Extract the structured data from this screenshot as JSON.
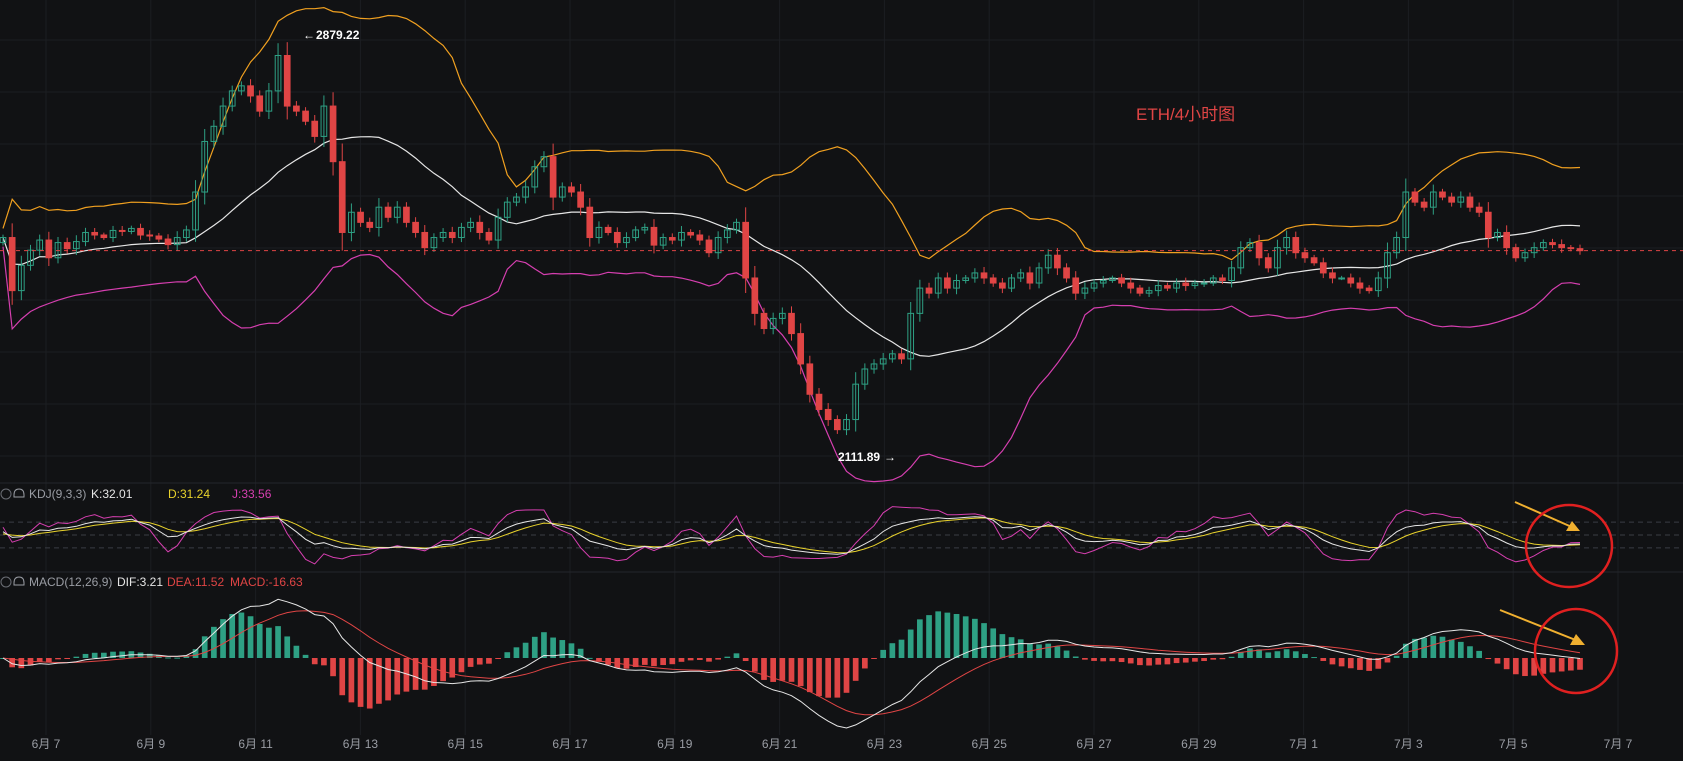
{
  "title": "ETH/4小时图",
  "colors": {
    "background": "#111214",
    "grid": "#1c1e22",
    "up": "#2ea084",
    "down": "#e04545",
    "bb_upper": "#f0a020",
    "bb_mid": "#e6e6e6",
    "bb_lower": "#d63fb0",
    "kdj_k": "#e6e6e6",
    "kdj_d": "#e8d22c",
    "kdj_j": "#d63fb0",
    "dif": "#e6e6e6",
    "dea": "#e04545",
    "annotation": "#f0b030",
    "circle": "#e02020",
    "price_line": "#e04545"
  },
  "price_high_label": "2879.22",
  "price_low_label": "2111.89",
  "kdj": {
    "name": "KDJ(9,3,3)",
    "k_label": "K:32.01",
    "d_label": "D:31.24",
    "j_label": "J:33.56"
  },
  "macd": {
    "name": "MACD(12,26,9)",
    "dif_label": "DIF:3.21",
    "dea_label": "DEA:11.52",
    "macd_label": "MACD:-16.63"
  },
  "chart_data": {
    "type": "candlestick",
    "x_ticks": [
      "6月 7",
      "6月 9",
      "6月 11",
      "6月 13",
      "6月 15",
      "6月 17",
      "6月 19",
      "6月 21",
      "6月 23",
      "6月 25",
      "6月 27",
      "6月 29",
      "7月 1",
      "7月 3",
      "7月 5",
      "7月 7"
    ],
    "ylim": [
      2060,
      2950
    ],
    "current_price": 2474,
    "closes": [
      2500,
      2395,
      2445,
      2475,
      2495,
      2460,
      2490,
      2478,
      2492,
      2510,
      2505,
      2500,
      2514,
      2512,
      2518,
      2505,
      2503,
      2497,
      2486,
      2500,
      2515,
      2590,
      2690,
      2720,
      2760,
      2790,
      2800,
      2780,
      2750,
      2790,
      2860,
      2760,
      2750,
      2730,
      2700,
      2760,
      2650,
      2510,
      2550,
      2530,
      2520,
      2560,
      2540,
      2560,
      2530,
      2510,
      2480,
      2500,
      2510,
      2500,
      2520,
      2530,
      2510,
      2495,
      2540,
      2570,
      2580,
      2600,
      2640,
      2660,
      2580,
      2600,
      2590,
      2560,
      2500,
      2520,
      2510,
      2490,
      2500,
      2515,
      2520,
      2485,
      2500,
      2495,
      2510,
      2505,
      2495,
      2470,
      2500,
      2515,
      2530,
      2420,
      2350,
      2320,
      2340,
      2350,
      2310,
      2250,
      2190,
      2160,
      2140,
      2120,
      2140,
      2210,
      2240,
      2250,
      2260,
      2270,
      2260,
      2350,
      2400,
      2390,
      2420,
      2400,
      2415,
      2420,
      2430,
      2420,
      2410,
      2400,
      2420,
      2430,
      2410,
      2440,
      2465,
      2440,
      2420,
      2390,
      2400,
      2410,
      2415,
      2420,
      2410,
      2400,
      2390,
      2395,
      2405,
      2400,
      2410,
      2405,
      2410,
      2410,
      2420,
      2415,
      2440,
      2480,
      2490,
      2460,
      2440,
      2480,
      2500,
      2470,
      2460,
      2450,
      2430,
      2420,
      2420,
      2410,
      2400,
      2395,
      2420,
      2470,
      2500,
      2590,
      2570,
      2560,
      2590,
      2580,
      2570,
      2580,
      2560,
      2550,
      2500,
      2510,
      2480,
      2460,
      2470,
      2480,
      2490,
      2486,
      2480,
      2478,
      2474
    ]
  }
}
